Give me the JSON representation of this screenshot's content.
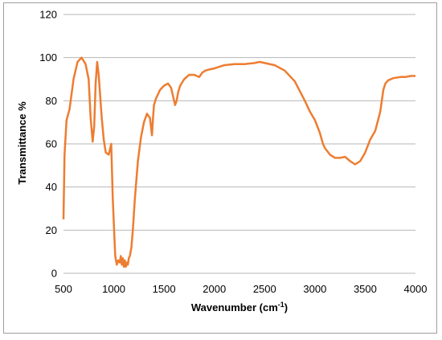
{
  "chart_data": {
    "type": "line",
    "title": "",
    "xlabel": "Wavenumber (cm",
    "xlabel_sup": "-1",
    "xlabel_suffix": ")",
    "ylabel": "Transmittance %",
    "xlim": [
      500,
      4000
    ],
    "ylim": [
      0,
      120
    ],
    "xticks": [
      "500",
      "1000",
      "1500",
      "2000",
      "2500",
      "3000",
      "3500",
      "4000"
    ],
    "yticks": [
      "0",
      "20",
      "40",
      "60",
      "80",
      "100",
      "120"
    ],
    "grid": "horizontal",
    "legend": "none",
    "series": [
      {
        "color": "#ED7D31",
        "x": [
          500,
          510,
          530,
          560,
          600,
          640,
          680,
          720,
          750,
          770,
          790,
          805,
          820,
          835,
          850,
          865,
          880,
          900,
          920,
          950,
          975,
          990,
          1005,
          1015,
          1030,
          1045,
          1060,
          1070,
          1080,
          1090,
          1100,
          1110,
          1120,
          1130,
          1140,
          1150,
          1160,
          1175,
          1190,
          1210,
          1240,
          1270,
          1300,
          1330,
          1360,
          1380,
          1390,
          1400,
          1420,
          1460,
          1500,
          1540,
          1570,
          1590,
          1610,
          1625,
          1640,
          1660,
          1700,
          1750,
          1800,
          1850,
          1880,
          1910,
          1950,
          2000,
          2100,
          2200,
          2300,
          2400,
          2450,
          2500,
          2600,
          2700,
          2800,
          2900,
          2950,
          3000,
          3050,
          3080,
          3100,
          3150,
          3200,
          3250,
          3300,
          3350,
          3400,
          3450,
          3500,
          3550,
          3600,
          3650,
          3680,
          3700,
          3730,
          3780,
          3850,
          3900,
          3950,
          4000
        ],
        "y": [
          25,
          55,
          71,
          76,
          90,
          98,
          100,
          97,
          90,
          72,
          61,
          68,
          88,
          98,
          92,
          82,
          72,
          62,
          56,
          55,
          60,
          35,
          18,
          8,
          4,
          6,
          5,
          8,
          4,
          7,
          3,
          6,
          3,
          5,
          4,
          7,
          8,
          12,
          20,
          35,
          52,
          63,
          70,
          74,
          72,
          64,
          72,
          78,
          81,
          85,
          87,
          88,
          86,
          82,
          78,
          80,
          84,
          87,
          90,
          92,
          92,
          91,
          93,
          94,
          94.5,
          95,
          96.5,
          97,
          97,
          97.5,
          98,
          97.5,
          96.5,
          94,
          89,
          80,
          75,
          71,
          65,
          60,
          58,
          55,
          53.5,
          53.5,
          54,
          52,
          50.5,
          52,
          56,
          62,
          66,
          75,
          85,
          88,
          89.5,
          90.5,
          91,
          91,
          91.5,
          91.5
        ]
      }
    ]
  }
}
